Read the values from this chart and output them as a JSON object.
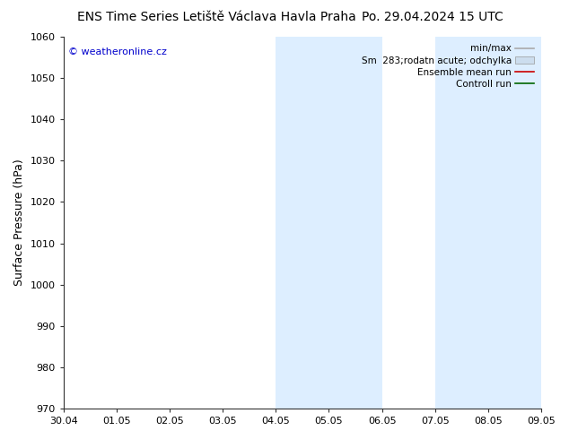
{
  "title_left": "ENS Time Series Letiště Václava Havla Praha",
  "title_right": "Po. 29.04.2024 15 UTC",
  "ylabel": "Surface Pressure (hPa)",
  "ylim": [
    970,
    1060
  ],
  "yticks": [
    970,
    980,
    990,
    1000,
    1010,
    1020,
    1030,
    1040,
    1050,
    1060
  ],
  "x_tick_labels": [
    "30.04",
    "01.05",
    "02.05",
    "03.05",
    "04.05",
    "05.05",
    "06.05",
    "07.05",
    "08.05",
    "09.05"
  ],
  "shade_bands": [
    {
      "xstart": 4.0,
      "xend": 6.0
    },
    {
      "xstart": 7.0,
      "xend": 9.0
    }
  ],
  "shade_color": "#ddeeff",
  "watermark": "© weatheronline.cz",
  "watermark_color": "#0000cc",
  "legend_items": [
    {
      "label": "min/max",
      "color": "#aaaaaa",
      "lw": 1.2,
      "type": "line"
    },
    {
      "label": "Sm  283;rodatn acute; odchylka",
      "color": "#ccddee",
      "type": "fill"
    },
    {
      "label": "Ensemble mean run",
      "color": "#cc0000",
      "lw": 1.2,
      "type": "line"
    },
    {
      "label": "Controll run",
      "color": "#006600",
      "lw": 1.2,
      "type": "line"
    }
  ],
  "background_color": "#ffffff",
  "title_fontsize": 10,
  "axis_label_fontsize": 9,
  "tick_fontsize": 8,
  "legend_fontsize": 7.5
}
